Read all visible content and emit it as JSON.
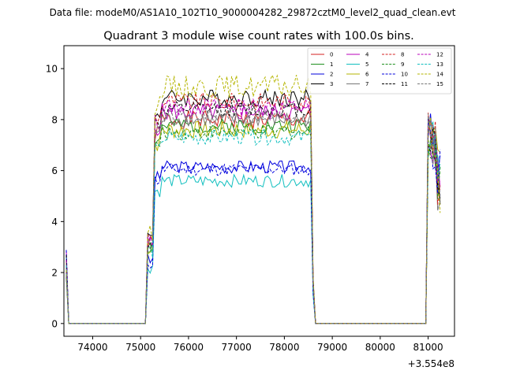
{
  "header": {
    "data_file": "Data file: modeM0/AS1A10_102T10_9000004282_29872cztM0_level2_quad_clean.evt"
  },
  "chart_data": {
    "type": "line",
    "title": "Quadrant 3 module wise count rates with 100.0s bins.",
    "xlabel": "",
    "ylabel": "",
    "x_offset_label": "+3.554e8",
    "xlim": [
      73400,
      81550
    ],
    "ylim": [
      -0.5,
      10.9
    ],
    "x_ticks": [
      74000,
      75000,
      76000,
      77000,
      78000,
      79000,
      80000,
      81000
    ],
    "y_ticks": [
      0,
      2,
      4,
      6,
      8,
      10
    ],
    "legend_position": "upper right",
    "series": [
      {
        "name": "0",
        "color": "#d62020",
        "dash": false,
        "level": 8.0,
        "amp": 0.35,
        "seed": 1
      },
      {
        "name": "1",
        "color": "#1f8f1f",
        "dash": false,
        "level": 7.75,
        "amp": 0.3,
        "seed": 2
      },
      {
        "name": "2",
        "color": "#0000dd",
        "dash": false,
        "level": 6.15,
        "amp": 0.25,
        "seed": 3
      },
      {
        "name": "3",
        "color": "#000000",
        "dash": false,
        "level": 8.85,
        "amp": 0.35,
        "seed": 4
      },
      {
        "name": "4",
        "color": "#bb00bb",
        "dash": false,
        "level": 8.3,
        "amp": 0.35,
        "seed": 5
      },
      {
        "name": "5",
        "color": "#10bfbf",
        "dash": false,
        "level": 5.6,
        "amp": 0.25,
        "seed": 6
      },
      {
        "name": "6",
        "color": "#b5b500",
        "dash": false,
        "level": 7.6,
        "amp": 0.35,
        "seed": 7
      },
      {
        "name": "7",
        "color": "#777777",
        "dash": false,
        "level": 8.0,
        "amp": 0.3,
        "seed": 8
      },
      {
        "name": "8",
        "color": "#d62020",
        "dash": true,
        "level": 8.7,
        "amp": 0.35,
        "seed": 9
      },
      {
        "name": "9",
        "color": "#1f8f1f",
        "dash": true,
        "level": 7.5,
        "amp": 0.3,
        "seed": 10
      },
      {
        "name": "10",
        "color": "#0000dd",
        "dash": true,
        "level": 6.05,
        "amp": 0.25,
        "seed": 11
      },
      {
        "name": "11",
        "color": "#000000",
        "dash": true,
        "level": 8.4,
        "amp": 0.3,
        "seed": 12
      },
      {
        "name": "12",
        "color": "#bb00bb",
        "dash": true,
        "level": 8.5,
        "amp": 0.35,
        "seed": 13
      },
      {
        "name": "13",
        "color": "#10bfbf",
        "dash": true,
        "level": 7.3,
        "amp": 0.3,
        "seed": 14
      },
      {
        "name": "14",
        "color": "#b5b500",
        "dash": true,
        "level": 9.3,
        "amp": 0.45,
        "seed": 15
      },
      {
        "name": "15",
        "color": "#777777",
        "dash": true,
        "level": 8.1,
        "amp": 0.3,
        "seed": 16
      }
    ]
  }
}
